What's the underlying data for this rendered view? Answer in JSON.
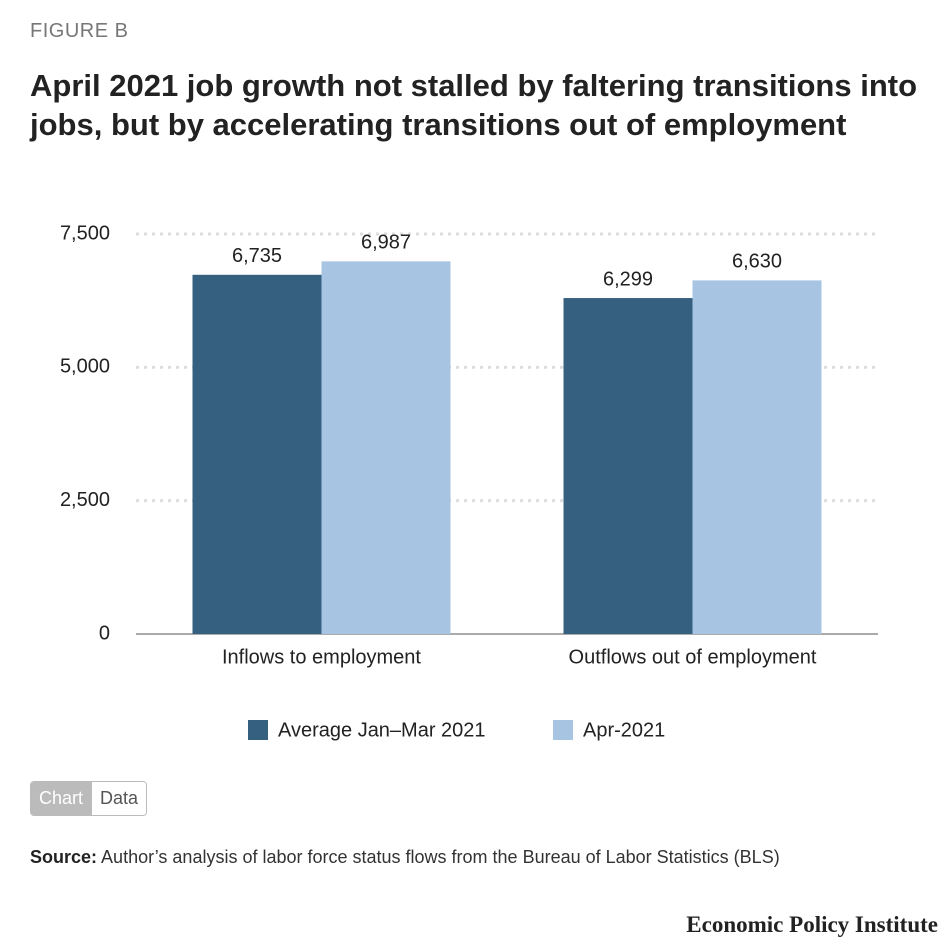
{
  "figure_label": "FIGURE B",
  "chart_data": {
    "type": "bar",
    "title": "April 2021 job growth not stalled by faltering transitions into jobs, but by accelerating transitions out of employment",
    "categories": [
      "Inflows to employment",
      "Outflows out of employment"
    ],
    "series": [
      {
        "name": "Average Jan–Mar 2021",
        "color": "#36607f",
        "values": [
          6735,
          6299
        ],
        "value_labels": [
          "6,735",
          "6,299"
        ]
      },
      {
        "name": "Apr-2021",
        "color": "#a7c4e3",
        "values": [
          6987,
          6630
        ],
        "value_labels": [
          "6,987",
          "6,630"
        ]
      }
    ],
    "ylim": [
      0,
      7500
    ],
    "yticks": [
      0,
      {
        "value": 2500,
        "label": "2,500"
      },
      {
        "value": 5000,
        "label": "5,000"
      },
      {
        "value": 7500,
        "label": "7,500"
      }
    ],
    "grid": true,
    "legend": "bottom"
  },
  "buttons": [
    "Chart",
    "Data"
  ],
  "source": {
    "label": "Source:",
    "text": "Author’s analysis of labor force status flows from the Bureau of Labor Statistics (BLS)"
  },
  "footer": "Economic Policy Institute"
}
